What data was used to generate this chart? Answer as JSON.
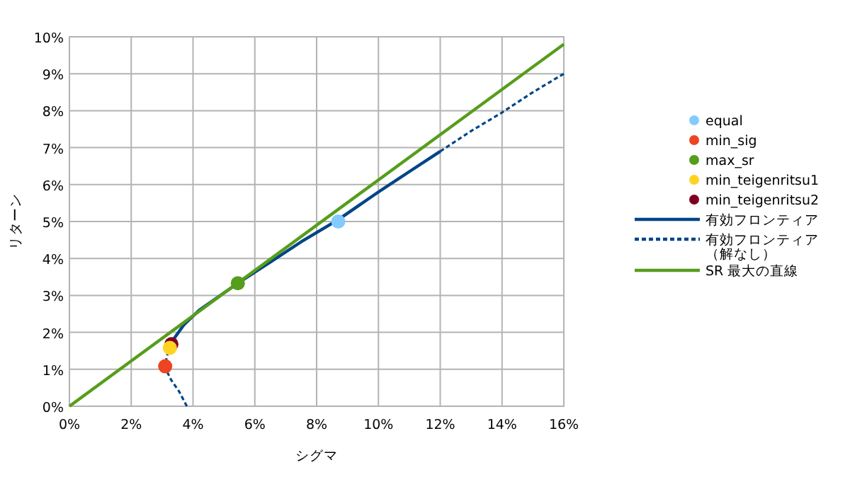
{
  "chart_data": {
    "type": "scatter",
    "xlabel": "シグマ",
    "ylabel": "リターン",
    "xlim": [
      0,
      16
    ],
    "ylim": [
      0,
      10
    ],
    "xticks": [
      {
        "value": 0,
        "label": "0%"
      },
      {
        "value": 2,
        "label": "2%"
      },
      {
        "value": 4,
        "label": "4%"
      },
      {
        "value": 6,
        "label": "6%"
      },
      {
        "value": 8,
        "label": "8%"
      },
      {
        "value": 10,
        "label": "10%"
      },
      {
        "value": 12,
        "label": "12%"
      },
      {
        "value": 14,
        "label": "14%"
      },
      {
        "value": 16,
        "label": "16%"
      }
    ],
    "yticks": [
      {
        "value": 0,
        "label": "0%"
      },
      {
        "value": 1,
        "label": "1%"
      },
      {
        "value": 2,
        "label": "2%"
      },
      {
        "value": 3,
        "label": "3%"
      },
      {
        "value": 4,
        "label": "4%"
      },
      {
        "value": 5,
        "label": "5%"
      },
      {
        "value": 6,
        "label": "6%"
      },
      {
        "value": 7,
        "label": "7%"
      },
      {
        "value": 8,
        "label": "8%"
      },
      {
        "value": 9,
        "label": "9%"
      },
      {
        "value": 10,
        "label": "10%"
      }
    ],
    "grid": true,
    "legend": "right",
    "series": [
      {
        "name": "equal",
        "marker": "circle",
        "color": "#83caff",
        "x": [
          8.7
        ],
        "values": [
          5.0
        ]
      },
      {
        "name": "min_sig",
        "marker": "circle",
        "color": "#ee4422",
        "x": [
          3.1
        ],
        "values": [
          1.08
        ]
      },
      {
        "name": "max_sr",
        "marker": "circle",
        "color": "#579d1c",
        "x": [
          5.45
        ],
        "values": [
          3.33
        ]
      },
      {
        "name": "min_teigenritsu1",
        "marker": "circle",
        "color": "#ffd320",
        "x": [
          3.25
        ],
        "values": [
          1.58
        ]
      },
      {
        "name": "min_teigenritsu2",
        "marker": "circle",
        "color": "#7e0021",
        "x": [
          3.3
        ],
        "values": [
          1.68
        ]
      },
      {
        "name": "有効フロンティア",
        "type": "line",
        "line_style": "solid",
        "color": "#004586",
        "x": [
          3.25,
          3.4,
          3.7,
          4.2,
          4.8,
          5.45,
          6.5,
          7.5,
          8.7,
          10,
          11,
          12
        ],
        "values": [
          1.58,
          1.85,
          2.2,
          2.6,
          2.95,
          3.33,
          3.9,
          4.45,
          5.05,
          5.8,
          6.35,
          6.9
        ]
      },
      {
        "name": "有効フロンティア（解なし）",
        "type": "line",
        "line_style": "dashed",
        "color": "#004586",
        "x": [
          3.8,
          3.55,
          3.3,
          3.15,
          3.1,
          3.15,
          3.25,
          null,
          12,
          13,
          14,
          15,
          16
        ],
        "values": [
          0,
          0.4,
          0.7,
          0.95,
          1.08,
          1.35,
          1.58,
          null,
          6.9,
          7.45,
          7.95,
          8.5,
          9.0
        ]
      },
      {
        "name": "SR 最大の直線",
        "type": "line",
        "line_style": "solid",
        "color": "#579d1c",
        "x": [
          0,
          16
        ],
        "values": [
          0,
          9.8
        ]
      }
    ]
  }
}
